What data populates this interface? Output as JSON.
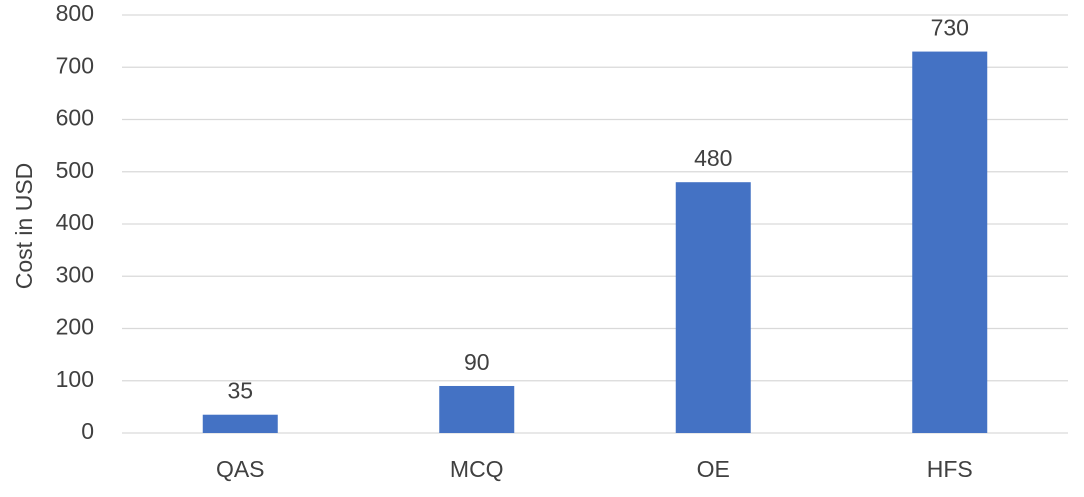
{
  "chart_data": {
    "type": "bar",
    "title": "",
    "xlabel": "",
    "ylabel": "Cost in USD",
    "categories": [
      "QAS",
      "MCQ",
      "OE",
      "HFS"
    ],
    "values": [
      35,
      90,
      480,
      730
    ],
    "data_labels": [
      "35",
      "90",
      "480",
      "730"
    ],
    "ylim": [
      0,
      800
    ],
    "yticks": [
      0,
      100,
      200,
      300,
      400,
      500,
      600,
      700,
      800
    ],
    "grid": true,
    "legend": "none",
    "colors": {
      "bar": "#4472C4",
      "grid": "#D9D9D9",
      "text": "#404040"
    }
  }
}
